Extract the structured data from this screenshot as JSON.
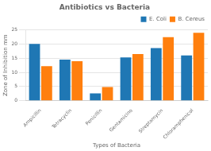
{
  "chart_data": {
    "type": "bar",
    "title": "Antibiotics vs Bacteria",
    "xlabel": "Types of Bacteria",
    "ylabel": "Zone of Inhibition mm",
    "categories": [
      "Ampicillin",
      "Tetracyclin",
      "Penicillin",
      "Gentamicino",
      "Streptomycin",
      "Chloramphenicol"
    ],
    "series": [
      {
        "name": "E. Coli",
        "color": "#1f77b4",
        "values": [
          20.1,
          14.5,
          2.6,
          15.3,
          18.6,
          16.0
        ]
      },
      {
        "name": "B. Cereus",
        "color": "#ff7f0e",
        "values": [
          12.2,
          14.0,
          4.8,
          16.5,
          22.5,
          24.0
        ]
      }
    ],
    "ylim": [
      0,
      25
    ],
    "yticks": [
      0,
      5,
      10,
      15,
      20,
      25
    ],
    "grid": true,
    "legend": "upper right"
  }
}
